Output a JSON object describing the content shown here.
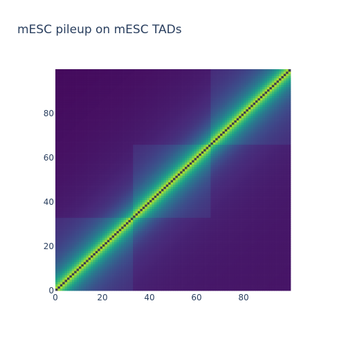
{
  "chart_data": {
    "type": "heatmap",
    "title": "mESC pileup on mESC TADs",
    "xlabel": "",
    "ylabel": "",
    "n_bins": 100,
    "xlim": [
      0,
      100
    ],
    "ylim": [
      0,
      100
    ],
    "x_ticks": [
      0,
      20,
      40,
      60,
      80
    ],
    "y_ticks": [
      0,
      20,
      40,
      60,
      80
    ],
    "y_origin": "bottom",
    "colorscale": "viridis",
    "colorscale_stops": [
      "#440154",
      "#482878",
      "#3e4989",
      "#31688e",
      "#26828e",
      "#1f9e89",
      "#35b779",
      "#6ece58",
      "#b5de2b",
      "#fde725"
    ],
    "diagonal_color": "#3b3b4f",
    "domains": [
      {
        "start": 0,
        "end": 33
      },
      {
        "start": 33,
        "end": 66
      },
      {
        "start": 66,
        "end": 100
      }
    ],
    "show_grid": false,
    "show_colorbar": false
  }
}
